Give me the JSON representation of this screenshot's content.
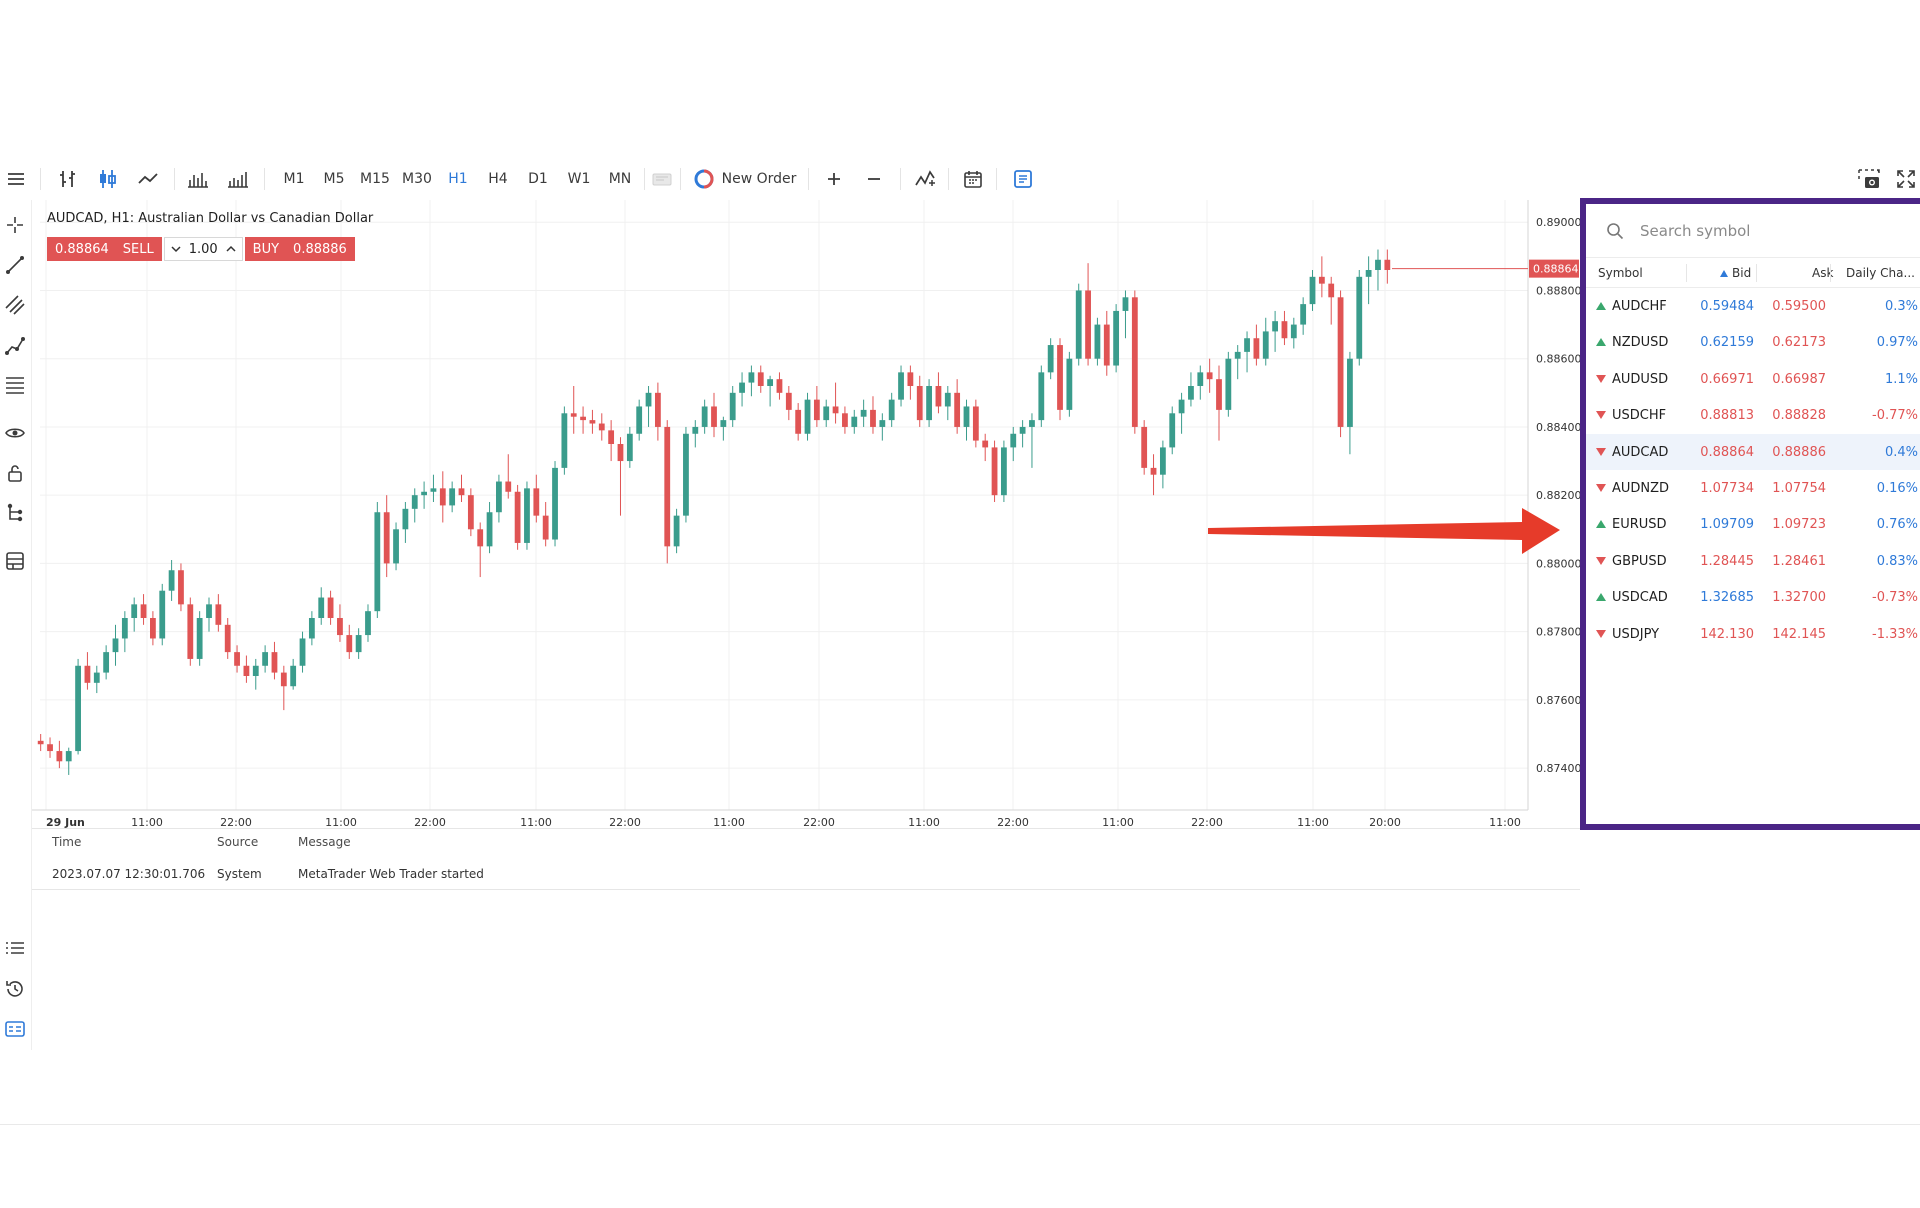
{
  "toolbar": {
    "timeframes": [
      "M1",
      "M5",
      "M15",
      "M30",
      "H1",
      "H4",
      "D1",
      "W1",
      "MN"
    ],
    "active_timeframe": "H1",
    "new_order_label": "New Order"
  },
  "chart": {
    "title": "AUDCAD, H1: Australian Dollar vs Canadian Dollar",
    "sell_price": "0.88864",
    "sell_label": "SELL",
    "lot": "1.00",
    "buy_label": "BUY",
    "buy_price": "0.88886",
    "current_price_tag": "0.88864",
    "price_axis": [
      "0.89000",
      "0.88800",
      "0.88600",
      "0.88400",
      "0.88200",
      "0.88000",
      "0.87800",
      "0.87600",
      "0.87400"
    ],
    "time_axis": [
      "29 Jun",
      "11:00",
      "22:00",
      "11:00",
      "22:00",
      "11:00",
      "22:00",
      "11:00",
      "22:00",
      "11:00",
      "22:00",
      "11:00",
      "22:00",
      "11:00",
      "20:00",
      "11:00"
    ],
    "colors": {
      "up": "#3a9c8c",
      "down": "#e05454",
      "grid": "#f0f0f0",
      "arrow": "#e63b2a",
      "highlight_border": "#4b2586",
      "accent": "#2f7ad8"
    },
    "chart_data": {
      "type": "candlestick",
      "symbol": "AUDCAD",
      "timeframe": "H1",
      "ylim": [
        0.8733,
        0.8903
      ],
      "last_price": 0.88864,
      "candles": [
        [
          0.8748,
          0.875,
          0.8745,
          0.8747
        ],
        [
          0.8747,
          0.8749,
          0.8743,
          0.8745
        ],
        [
          0.8745,
          0.8748,
          0.874,
          0.8742
        ],
        [
          0.8742,
          0.8746,
          0.8738,
          0.8745
        ],
        [
          0.8745,
          0.8772,
          0.8744,
          0.877
        ],
        [
          0.877,
          0.8774,
          0.8763,
          0.8765
        ],
        [
          0.8765,
          0.877,
          0.8762,
          0.8768
        ],
        [
          0.8768,
          0.8776,
          0.8766,
          0.8774
        ],
        [
          0.8774,
          0.8782,
          0.877,
          0.8778
        ],
        [
          0.8778,
          0.8786,
          0.8774,
          0.8784
        ],
        [
          0.8784,
          0.879,
          0.878,
          0.8788
        ],
        [
          0.8788,
          0.8791,
          0.8782,
          0.8784
        ],
        [
          0.8784,
          0.8786,
          0.8776,
          0.8778
        ],
        [
          0.8778,
          0.8794,
          0.8776,
          0.8792
        ],
        [
          0.8792,
          0.8801,
          0.8789,
          0.8798
        ],
        [
          0.8798,
          0.88,
          0.8786,
          0.8788
        ],
        [
          0.8788,
          0.879,
          0.877,
          0.8772
        ],
        [
          0.8772,
          0.8786,
          0.877,
          0.8784
        ],
        [
          0.8784,
          0.879,
          0.878,
          0.8788
        ],
        [
          0.8788,
          0.8791,
          0.878,
          0.8782
        ],
        [
          0.8782,
          0.8784,
          0.8772,
          0.8774
        ],
        [
          0.8774,
          0.8776,
          0.8768,
          0.877
        ],
        [
          0.877,
          0.8773,
          0.8765,
          0.8767
        ],
        [
          0.8767,
          0.8772,
          0.8763,
          0.877
        ],
        [
          0.877,
          0.8776,
          0.8768,
          0.8774
        ],
        [
          0.8774,
          0.8777,
          0.8766,
          0.8768
        ],
        [
          0.8768,
          0.877,
          0.8757,
          0.8764
        ],
        [
          0.8764,
          0.8772,
          0.8763,
          0.877
        ],
        [
          0.877,
          0.878,
          0.8768,
          0.8778
        ],
        [
          0.8778,
          0.8786,
          0.8776,
          0.8784
        ],
        [
          0.8784,
          0.8793,
          0.8782,
          0.879
        ],
        [
          0.879,
          0.8792,
          0.8782,
          0.8784
        ],
        [
          0.8784,
          0.8788,
          0.8777,
          0.8779
        ],
        [
          0.8779,
          0.8782,
          0.8772,
          0.8774
        ],
        [
          0.8774,
          0.8781,
          0.8772,
          0.8779
        ],
        [
          0.8779,
          0.8788,
          0.8777,
          0.8786
        ],
        [
          0.8786,
          0.8818,
          0.8784,
          0.8815
        ],
        [
          0.8815,
          0.882,
          0.8796,
          0.88
        ],
        [
          0.88,
          0.8812,
          0.8798,
          0.881
        ],
        [
          0.881,
          0.8818,
          0.8806,
          0.8816
        ],
        [
          0.8816,
          0.8822,
          0.8812,
          0.882
        ],
        [
          0.882,
          0.8824,
          0.8816,
          0.8821
        ],
        [
          0.8821,
          0.8826,
          0.8818,
          0.8822
        ],
        [
          0.8822,
          0.8827,
          0.8812,
          0.8817
        ],
        [
          0.8817,
          0.8824,
          0.8815,
          0.8822
        ],
        [
          0.8822,
          0.8826,
          0.8818,
          0.882
        ],
        [
          0.882,
          0.8822,
          0.8808,
          0.881
        ],
        [
          0.881,
          0.8812,
          0.8796,
          0.8805
        ],
        [
          0.8805,
          0.8818,
          0.8803,
          0.8815
        ],
        [
          0.8815,
          0.8826,
          0.8812,
          0.8824
        ],
        [
          0.8824,
          0.8832,
          0.8819,
          0.8821
        ],
        [
          0.8821,
          0.8823,
          0.8804,
          0.8806
        ],
        [
          0.8806,
          0.8824,
          0.8804,
          0.8822
        ],
        [
          0.8822,
          0.8826,
          0.8812,
          0.8814
        ],
        [
          0.8814,
          0.8818,
          0.8805,
          0.8807
        ],
        [
          0.8807,
          0.883,
          0.8805,
          0.8828
        ],
        [
          0.8828,
          0.8846,
          0.8826,
          0.8844
        ],
        [
          0.8844,
          0.8852,
          0.8838,
          0.8843
        ],
        [
          0.8843,
          0.8846,
          0.8838,
          0.8842
        ],
        [
          0.8842,
          0.8845,
          0.8838,
          0.8841
        ],
        [
          0.8841,
          0.8844,
          0.8836,
          0.8839
        ],
        [
          0.8839,
          0.8842,
          0.883,
          0.8835
        ],
        [
          0.8835,
          0.8837,
          0.8814,
          0.883
        ],
        [
          0.883,
          0.884,
          0.8828,
          0.8838
        ],
        [
          0.8838,
          0.8848,
          0.8836,
          0.8846
        ],
        [
          0.8846,
          0.8852,
          0.884,
          0.885
        ],
        [
          0.885,
          0.8853,
          0.8836,
          0.884
        ],
        [
          0.884,
          0.8842,
          0.88,
          0.8805
        ],
        [
          0.8805,
          0.8816,
          0.8803,
          0.8814
        ],
        [
          0.8814,
          0.884,
          0.8812,
          0.8838
        ],
        [
          0.8838,
          0.8842,
          0.8834,
          0.884
        ],
        [
          0.884,
          0.8848,
          0.8838,
          0.8846
        ],
        [
          0.8846,
          0.885,
          0.8837,
          0.884
        ],
        [
          0.884,
          0.8843,
          0.8836,
          0.8842
        ],
        [
          0.8842,
          0.8852,
          0.884,
          0.885
        ],
        [
          0.885,
          0.8856,
          0.8846,
          0.8853
        ],
        [
          0.8853,
          0.8858,
          0.8849,
          0.8856
        ],
        [
          0.8856,
          0.8858,
          0.885,
          0.8852
        ],
        [
          0.8852,
          0.8855,
          0.8846,
          0.8854
        ],
        [
          0.8854,
          0.8856,
          0.8848,
          0.885
        ],
        [
          0.885,
          0.8852,
          0.8842,
          0.8845
        ],
        [
          0.8845,
          0.8847,
          0.8836,
          0.8838
        ],
        [
          0.8838,
          0.885,
          0.8836,
          0.8848
        ],
        [
          0.8848,
          0.8852,
          0.884,
          0.8842
        ],
        [
          0.8842,
          0.8848,
          0.884,
          0.8846
        ],
        [
          0.8846,
          0.8853,
          0.8841,
          0.8844
        ],
        [
          0.8844,
          0.8846,
          0.8838,
          0.884
        ],
        [
          0.884,
          0.8845,
          0.8838,
          0.8843
        ],
        [
          0.8843,
          0.8848,
          0.884,
          0.8845
        ],
        [
          0.8845,
          0.8849,
          0.8838,
          0.884
        ],
        [
          0.884,
          0.8844,
          0.8836,
          0.8842
        ],
        [
          0.8842,
          0.885,
          0.884,
          0.8848
        ],
        [
          0.8848,
          0.8858,
          0.8846,
          0.8856
        ],
        [
          0.8856,
          0.8858,
          0.8848,
          0.8852
        ],
        [
          0.8852,
          0.8855,
          0.884,
          0.8842
        ],
        [
          0.8842,
          0.8854,
          0.884,
          0.8852
        ],
        [
          0.8852,
          0.8856,
          0.8844,
          0.8846
        ],
        [
          0.8846,
          0.8852,
          0.8842,
          0.885
        ],
        [
          0.885,
          0.8854,
          0.8838,
          0.884
        ],
        [
          0.884,
          0.8848,
          0.8836,
          0.8846
        ],
        [
          0.8846,
          0.8848,
          0.8834,
          0.8836
        ],
        [
          0.8836,
          0.8838,
          0.883,
          0.8834
        ],
        [
          0.8834,
          0.8836,
          0.8818,
          0.882
        ],
        [
          0.882,
          0.8836,
          0.8818,
          0.8834
        ],
        [
          0.8834,
          0.884,
          0.883,
          0.8838
        ],
        [
          0.8838,
          0.8842,
          0.8834,
          0.884
        ],
        [
          0.884,
          0.8844,
          0.8828,
          0.8842
        ],
        [
          0.8842,
          0.8858,
          0.884,
          0.8856
        ],
        [
          0.8856,
          0.8866,
          0.8854,
          0.8864
        ],
        [
          0.8864,
          0.8866,
          0.8842,
          0.8845
        ],
        [
          0.8845,
          0.8862,
          0.8843,
          0.886
        ],
        [
          0.886,
          0.8882,
          0.8858,
          0.888
        ],
        [
          0.888,
          0.8888,
          0.8858,
          0.886
        ],
        [
          0.886,
          0.8872,
          0.8858,
          0.887
        ],
        [
          0.887,
          0.8874,
          0.8855,
          0.8858
        ],
        [
          0.8858,
          0.8876,
          0.8856,
          0.8874
        ],
        [
          0.8874,
          0.888,
          0.8866,
          0.8878
        ],
        [
          0.8878,
          0.888,
          0.8838,
          0.884
        ],
        [
          0.884,
          0.8842,
          0.8826,
          0.8828
        ],
        [
          0.8828,
          0.8832,
          0.882,
          0.8826
        ],
        [
          0.8826,
          0.8836,
          0.8822,
          0.8834
        ],
        [
          0.8834,
          0.8846,
          0.8832,
          0.8844
        ],
        [
          0.8844,
          0.885,
          0.8838,
          0.8848
        ],
        [
          0.8848,
          0.8856,
          0.8846,
          0.8852
        ],
        [
          0.8852,
          0.8858,
          0.8848,
          0.8856
        ],
        [
          0.8856,
          0.886,
          0.885,
          0.8854
        ],
        [
          0.8854,
          0.8858,
          0.8836,
          0.8845
        ],
        [
          0.8845,
          0.8862,
          0.8843,
          0.886
        ],
        [
          0.886,
          0.8864,
          0.8854,
          0.8862
        ],
        [
          0.8862,
          0.8868,
          0.8856,
          0.8866
        ],
        [
          0.8866,
          0.887,
          0.8858,
          0.886
        ],
        [
          0.886,
          0.8872,
          0.8858,
          0.8868
        ],
        [
          0.8868,
          0.8874,
          0.8862,
          0.8871
        ],
        [
          0.8871,
          0.8874,
          0.8864,
          0.8866
        ],
        [
          0.8866,
          0.8872,
          0.8863,
          0.887
        ],
        [
          0.887,
          0.8878,
          0.8867,
          0.8876
        ],
        [
          0.8876,
          0.8886,
          0.8874,
          0.8884
        ],
        [
          0.8884,
          0.889,
          0.8878,
          0.8882
        ],
        [
          0.8882,
          0.8884,
          0.887,
          0.8878
        ],
        [
          0.8878,
          0.888,
          0.8837,
          0.884
        ],
        [
          0.884,
          0.8862,
          0.8832,
          0.886
        ],
        [
          0.886,
          0.8886,
          0.8858,
          0.8884
        ],
        [
          0.8884,
          0.889,
          0.8876,
          0.8886
        ],
        [
          0.8886,
          0.8892,
          0.888,
          0.8889
        ],
        [
          0.8889,
          0.8892,
          0.8882,
          0.8886
        ]
      ]
    }
  },
  "journal": {
    "columns": [
      "Time",
      "Source",
      "Message"
    ],
    "rows": [
      {
        "time": "2023.07.07 12:30:01.706",
        "source": "System",
        "message": "MetaTrader Web Trader started"
      }
    ]
  },
  "watchlist": {
    "search_placeholder": "Search symbol",
    "columns": {
      "symbol": "Symbol",
      "bid": "Bid",
      "ask": "Ask",
      "change": "Daily Cha..."
    },
    "rows": [
      {
        "symbol": "AUDCHF",
        "dir": "up",
        "bid": "0.59484",
        "ask": "0.59500",
        "change": "0.3%",
        "bid_color": "#2f7ad8",
        "ask_color": "#e05454",
        "change_color": "#2f7ad8"
      },
      {
        "symbol": "NZDUSD",
        "dir": "up",
        "bid": "0.62159",
        "ask": "0.62173",
        "change": "0.97%",
        "bid_color": "#2f7ad8",
        "ask_color": "#e05454",
        "change_color": "#2f7ad8"
      },
      {
        "symbol": "AUDUSD",
        "dir": "down",
        "bid": "0.66971",
        "ask": "0.66987",
        "change": "1.1%",
        "bid_color": "#e05454",
        "ask_color": "#e05454",
        "change_color": "#2f7ad8"
      },
      {
        "symbol": "USDCHF",
        "dir": "down",
        "bid": "0.88813",
        "ask": "0.88828",
        "change": "-0.77%",
        "bid_color": "#e05454",
        "ask_color": "#e05454",
        "change_color": "#e05454"
      },
      {
        "symbol": "AUDCAD",
        "dir": "down",
        "bid": "0.88864",
        "ask": "0.88886",
        "change": "0.4%",
        "bid_color": "#e05454",
        "ask_color": "#e05454",
        "change_color": "#2f7ad8",
        "selected": true
      },
      {
        "symbol": "AUDNZD",
        "dir": "down",
        "bid": "1.07734",
        "ask": "1.07754",
        "change": "0.16%",
        "bid_color": "#e05454",
        "ask_color": "#e05454",
        "change_color": "#2f7ad8"
      },
      {
        "symbol": "EURUSD",
        "dir": "up",
        "bid": "1.09709",
        "ask": "1.09723",
        "change": "0.76%",
        "bid_color": "#2f7ad8",
        "ask_color": "#e05454",
        "change_color": "#2f7ad8"
      },
      {
        "symbol": "GBPUSD",
        "dir": "down",
        "bid": "1.28445",
        "ask": "1.28461",
        "change": "0.83%",
        "bid_color": "#e05454",
        "ask_color": "#e05454",
        "change_color": "#2f7ad8"
      },
      {
        "symbol": "USDCAD",
        "dir": "up",
        "bid": "1.32685",
        "ask": "1.32700",
        "change": "-0.73%",
        "bid_color": "#2f7ad8",
        "ask_color": "#e05454",
        "change_color": "#e05454"
      },
      {
        "symbol": "USDJPY",
        "dir": "down",
        "bid": "142.130",
        "ask": "142.145",
        "change": "-1.33%",
        "bid_color": "#e05454",
        "ask_color": "#e05454",
        "change_color": "#e05454"
      }
    ]
  }
}
